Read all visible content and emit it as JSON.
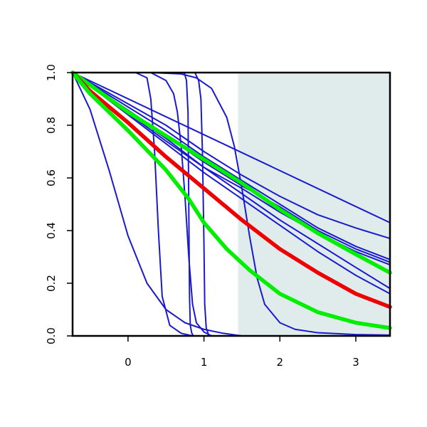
{
  "chart_data": {
    "type": "line",
    "title": "",
    "xlabel": "",
    "ylabel": "",
    "xlim": [
      -0.73,
      3.45
    ],
    "ylim": [
      0.0,
      1.0
    ],
    "xticks": [
      0,
      1,
      2,
      3
    ],
    "yticks": [
      0.0,
      0.2,
      0.4,
      0.6,
      0.8,
      1.0
    ],
    "xtick_labels": [
      "0",
      "1",
      "2",
      "3"
    ],
    "ytick_labels": [
      "0.0",
      "0.2",
      "0.4",
      "0.6",
      "0.8",
      "1.0"
    ],
    "grid": false,
    "legend": "none",
    "shaded_region": {
      "x_from": 1.45,
      "x_to": 3.45,
      "color": "#e0ecec"
    },
    "series": [
      {
        "color": "#1a1acc",
        "width": "thin",
        "x": [
          -0.73,
          -0.5,
          -0.25,
          0,
          0.25,
          0.5,
          0.75,
          1,
          1.25,
          1.5
        ],
        "y": [
          1.0,
          0.86,
          0.63,
          0.38,
          0.2,
          0.1,
          0.05,
          0.025,
          0.01,
          0.0
        ]
      },
      {
        "color": "#1a1acc",
        "width": "thin",
        "x": [
          -0.73,
          0.1,
          0.25,
          0.3,
          0.35,
          0.4,
          0.45,
          0.55,
          0.7,
          0.85
        ],
        "y": [
          1.0,
          1.0,
          0.98,
          0.9,
          0.7,
          0.4,
          0.15,
          0.04,
          0.01,
          0.0
        ]
      },
      {
        "color": "#1a1acc",
        "width": "thin",
        "x": [
          -0.73,
          0.3,
          0.5,
          0.6,
          0.65,
          0.7,
          0.75,
          0.8,
          0.85,
          0.9,
          1.0,
          1.1
        ],
        "y": [
          1.0,
          1.0,
          0.97,
          0.92,
          0.85,
          0.72,
          0.53,
          0.3,
          0.12,
          0.05,
          0.015,
          0.0
        ]
      },
      {
        "color": "#1a1acc",
        "width": "thin",
        "x": [
          -0.73,
          0.74,
          0.77,
          0.79,
          0.8,
          0.81,
          0.82,
          0.84,
          0.86
        ],
        "y": [
          1.0,
          1.0,
          0.97,
          0.85,
          0.5,
          0.15,
          0.04,
          0.01,
          0.0
        ]
      },
      {
        "color": "#1a1acc",
        "width": "thin",
        "x": [
          -0.73,
          0.88,
          0.93,
          0.96,
          0.98,
          1.0,
          1.01,
          1.03,
          1.06,
          1.1
        ],
        "y": [
          1.0,
          1.0,
          0.97,
          0.9,
          0.7,
          0.35,
          0.12,
          0.03,
          0.005,
          0.0
        ]
      },
      {
        "color": "#1a1acc",
        "width": "thin",
        "x": [
          -0.73,
          0.3,
          0.7,
          0.9,
          1.1,
          1.3,
          1.4,
          1.5,
          1.6,
          1.7,
          1.8,
          2.0,
          2.2,
          2.5,
          3.0,
          3.45
        ],
        "y": [
          1.0,
          1.0,
          0.995,
          0.98,
          0.94,
          0.83,
          0.72,
          0.56,
          0.38,
          0.22,
          0.12,
          0.05,
          0.025,
          0.012,
          0.005,
          0.003
        ]
      },
      {
        "color": "#1a1acc",
        "width": "thin",
        "x": [
          -0.73,
          3.45
        ],
        "y": [
          1.0,
          0.43
        ]
      },
      {
        "color": "#1a1acc",
        "width": "thin",
        "x": [
          -0.73,
          0.5,
          1.0,
          1.5,
          2.0,
          2.5,
          3.0,
          3.45
        ],
        "y": [
          1.0,
          0.8,
          0.7,
          0.61,
          0.53,
          0.46,
          0.41,
          0.37
        ]
      },
      {
        "color": "#1a1acc",
        "width": "thin",
        "x": [
          -0.73,
          0.5,
          1.0,
          1.5,
          2.0,
          2.5,
          3.0,
          3.45
        ],
        "y": [
          1.0,
          0.78,
          0.68,
          0.59,
          0.5,
          0.41,
          0.34,
          0.29
        ]
      },
      {
        "color": "#1a1acc",
        "width": "thin",
        "x": [
          -0.73,
          0.5,
          1.0,
          1.5,
          2.0,
          2.5,
          3.0,
          3.45
        ],
        "y": [
          1.0,
          0.76,
          0.66,
          0.57,
          0.49,
          0.4,
          0.33,
          0.28
        ]
      },
      {
        "color": "#1a1acc",
        "width": "thin",
        "x": [
          -0.73,
          0.5,
          1.0,
          1.5,
          2.0,
          2.5,
          3.0,
          3.45
        ],
        "y": [
          1.0,
          0.74,
          0.64,
          0.56,
          0.47,
          0.39,
          0.32,
          0.27
        ]
      },
      {
        "color": "#1a1acc",
        "width": "thin",
        "x": [
          -0.73,
          0.5,
          1.0,
          1.5,
          2.0,
          2.5,
          3.0,
          3.45
        ],
        "y": [
          1.0,
          0.75,
          0.64,
          0.54,
          0.44,
          0.35,
          0.26,
          0.18
        ]
      },
      {
        "color": "#1a1acc",
        "width": "thin",
        "x": [
          -0.73,
          0.5,
          1.0,
          1.5,
          2.0,
          2.5,
          3.0,
          3.45
        ],
        "y": [
          1.0,
          0.73,
          0.62,
          0.52,
          0.42,
          0.32,
          0.23,
          0.16
        ]
      },
      {
        "color": "#00ee00",
        "width": "thick",
        "x": [
          -0.73,
          0.0,
          0.5,
          1.0,
          1.5,
          2.0,
          2.5,
          3.0,
          3.45
        ],
        "y": [
          1.0,
          0.85,
          0.76,
          0.67,
          0.58,
          0.48,
          0.39,
          0.31,
          0.24
        ]
      },
      {
        "color": "#ee0000",
        "width": "thick",
        "x": [
          -0.73,
          -0.5,
          0.0,
          0.5,
          1.0,
          1.5,
          2.0,
          2.5,
          3.0,
          3.45
        ],
        "y": [
          1.0,
          0.93,
          0.81,
          0.68,
          0.56,
          0.44,
          0.33,
          0.24,
          0.16,
          0.11
        ]
      },
      {
        "color": "#00ee00",
        "width": "thick",
        "x": [
          -0.73,
          -0.5,
          0.0,
          0.5,
          0.8,
          1.0,
          1.3,
          1.6,
          2.0,
          2.5,
          3.0,
          3.45
        ],
        "y": [
          1.0,
          0.92,
          0.78,
          0.63,
          0.52,
          0.43,
          0.33,
          0.25,
          0.16,
          0.09,
          0.05,
          0.03
        ]
      }
    ]
  }
}
